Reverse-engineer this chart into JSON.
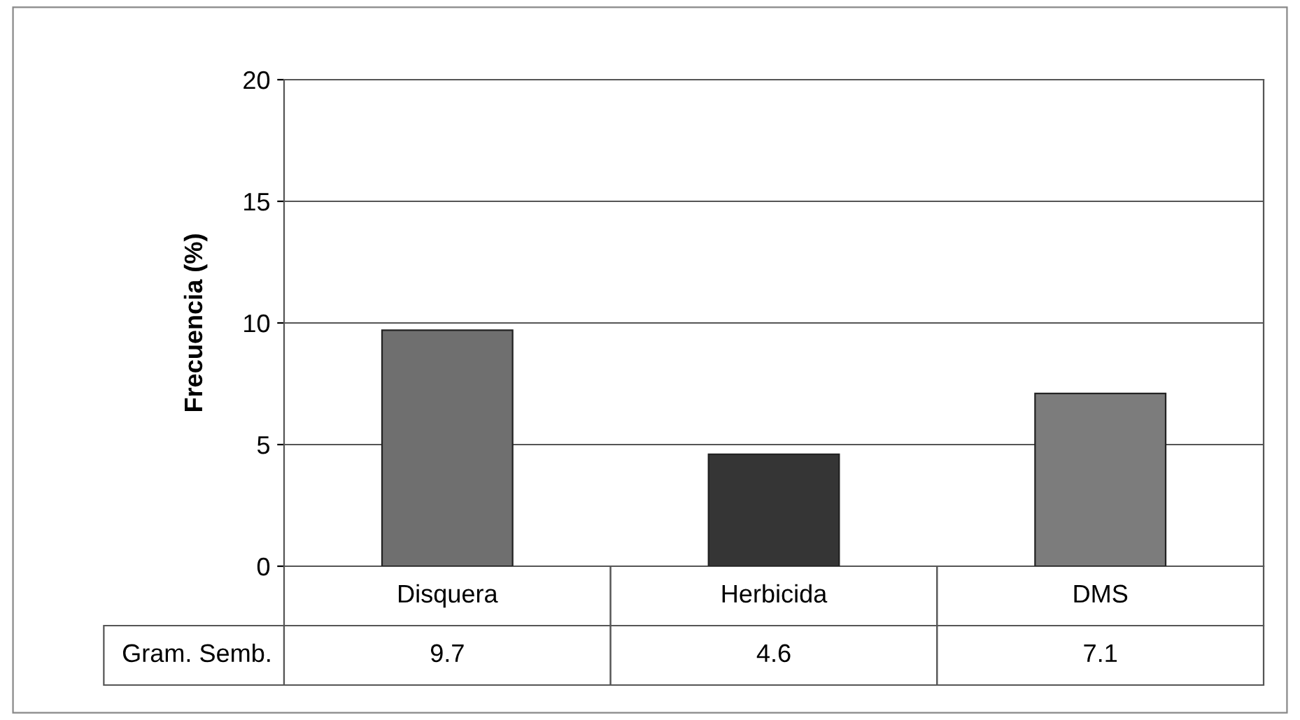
{
  "chart_data": {
    "type": "bar",
    "ylabel": "Frecuencia (%)",
    "categories": [
      "Disquera",
      "Herbicida",
      "DMS"
    ],
    "series": [
      {
        "name": "Gram. Semb.",
        "colors": [
          "#6f6f6f",
          "#353535",
          "#7c7c7c"
        ],
        "values": [
          9.7,
          4.6,
          7.1
        ]
      }
    ],
    "ylim": [
      0,
      20
    ],
    "yticks": [
      0,
      5,
      10,
      15,
      20
    ],
    "grid": "y",
    "data_labels": true,
    "legend": false
  }
}
